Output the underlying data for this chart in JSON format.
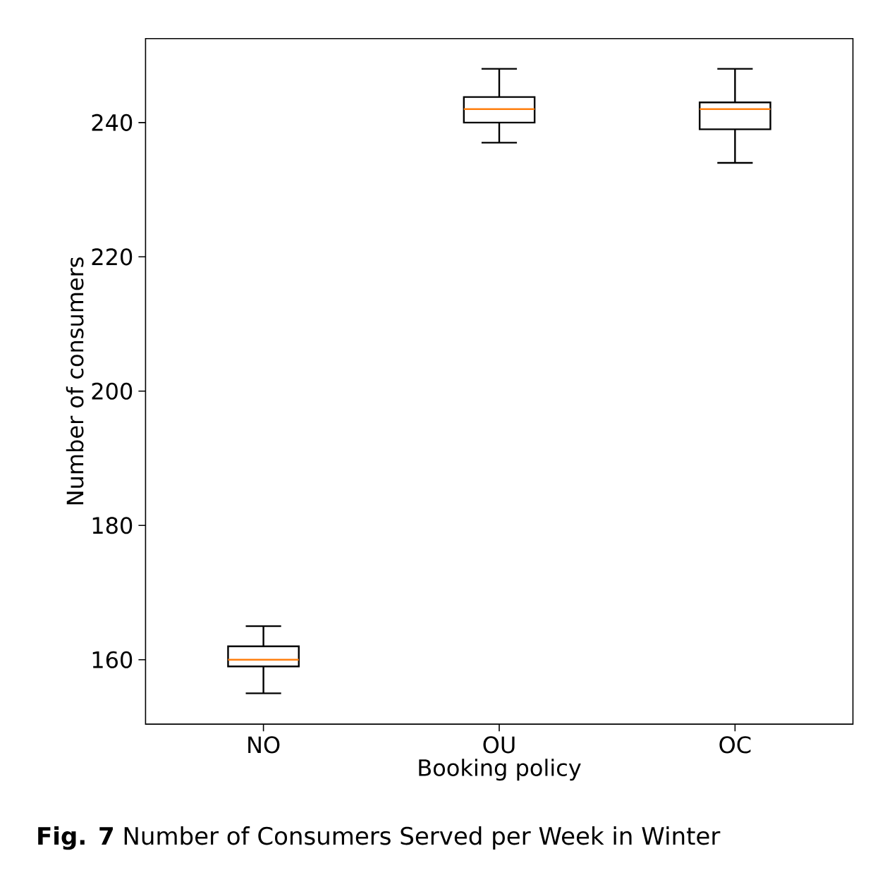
{
  "chart_data": {
    "type": "box",
    "categories": [
      "NO",
      "OU",
      "OC"
    ],
    "xlabel": "Booking policy",
    "ylabel": "Number of consumers",
    "ylim": [
      150.4,
      252.5
    ],
    "yticks": [
      160,
      180,
      200,
      220,
      240
    ],
    "series": [
      {
        "color": "#000000",
        "boxes": [
          {
            "low": 155,
            "q1": 159,
            "median": 160,
            "q3": 162,
            "high": 165
          },
          {
            "low": 237,
            "q1": 240,
            "median": 242,
            "q3": 243.8,
            "high": 248
          },
          {
            "low": 234,
            "q1": 239,
            "median": 242,
            "q3": 243,
            "high": 248
          }
        ]
      }
    ],
    "grid": false,
    "annotations": [
      "**Fig. 7** Number of Consumers Served per Week in Winter"
    ]
  }
}
